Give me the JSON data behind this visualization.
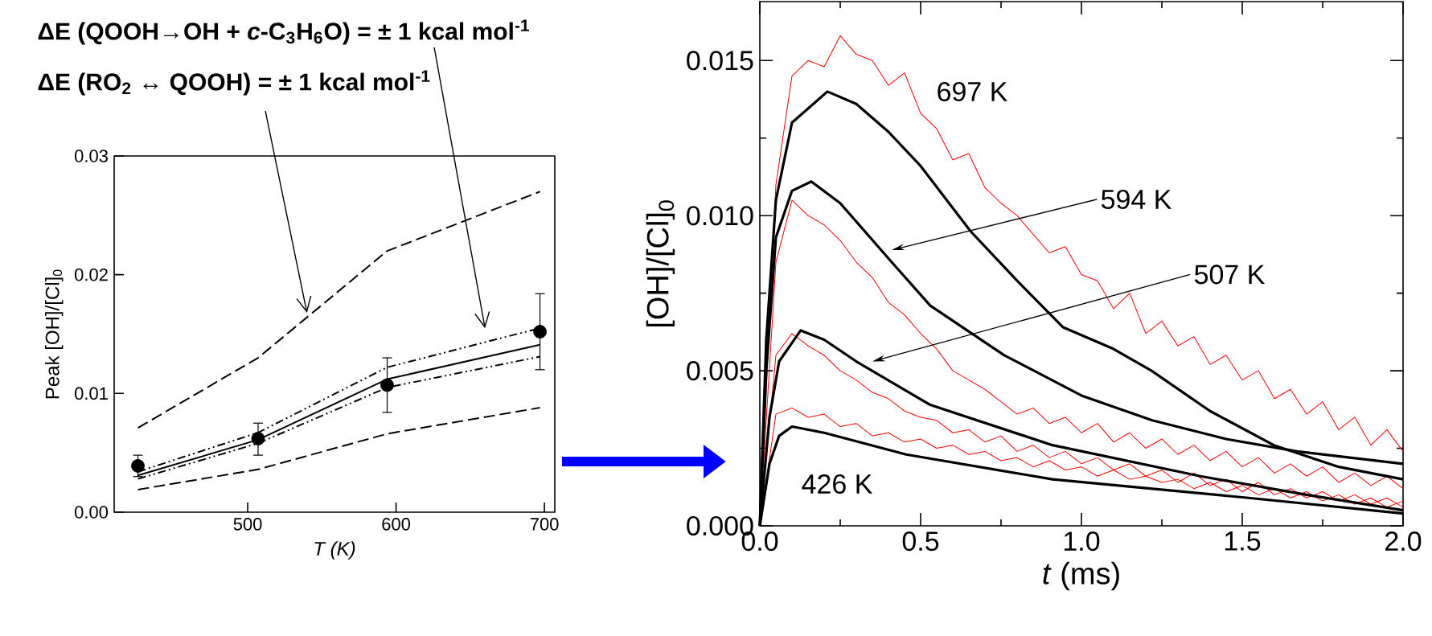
{
  "chart_data": [
    {
      "type": "line",
      "xlabel": "T (K)",
      "ylabel": "Peak [OH]/[Cl]$_{0}$",
      "xlim": [
        410,
        707
      ],
      "xticks": [
        500,
        600,
        700
      ],
      "ylim": [
        0,
        0.03
      ],
      "yticks": [
        {
          "value": 0,
          "label": "0.00"
        },
        {
          "value": 0.01,
          "label": "0.01"
        },
        {
          "value": 0.02,
          "label": "0.02"
        },
        {
          "value": 0.03,
          "label": "0.03"
        }
      ],
      "annotations": [
        "ΔE (QOOH→OH + *c*-C$_{3}$H$_{6}$O) = ± 1 kcal mol$^{-1}$",
        "ΔE (RO$_{2}$ ↔ QOOH) = ± 1 kcal mol$^{-1}$"
      ],
      "series": [
        {
          "type": "scatter",
          "marker": "circle",
          "color": "#000000",
          "x": [
            426,
            507,
            594,
            697
          ],
          "values": [
            0.0039,
            0.0062,
            0.0107,
            0.0152
          ],
          "errors": [
            [
              0.003,
              0.0048
            ],
            [
              0.0048,
              0.0075
            ],
            [
              0.0084,
              0.013
            ],
            [
              0.012,
              0.0184
            ]
          ]
        },
        {
          "type": "line",
          "line_style": "solid",
          "color": "#000000",
          "x": [
            426,
            507,
            594,
            697
          ],
          "values": [
            0.0031,
            0.0061,
            0.0112,
            0.0141
          ]
        },
        {
          "type": "line",
          "line_style": "dashdotdotted",
          "color": "#000000",
          "x": [
            426,
            507,
            594,
            697
          ],
          "values": [
            0.0034,
            0.0067,
            0.0122,
            0.0155
          ]
        },
        {
          "type": "line",
          "line_style": "dashdotdotted",
          "color": "#000000",
          "x": [
            426,
            507,
            594,
            697
          ],
          "values": [
            0.0028,
            0.0058,
            0.0105,
            0.0131
          ]
        },
        {
          "type": "line",
          "line_style": "dashed",
          "color": "#000000",
          "x": [
            426,
            507,
            594,
            697
          ],
          "values": [
            0.0071,
            0.013,
            0.022,
            0.027
          ]
        },
        {
          "type": "line",
          "line_style": "dashed",
          "color": "#000000",
          "x": [
            426,
            507,
            594,
            697
          ],
          "values": [
            0.0019,
            0.0036,
            0.0066,
            0.0088
          ]
        }
      ]
    },
    {
      "type": "line",
      "xlabel": "*t* (ms)",
      "ylabel": "[OH]/[Cl]$_{0}$",
      "xlim": [
        0,
        2
      ],
      "xticks": [
        {
          "value": 0,
          "label": "0.0"
        },
        {
          "value": 0.5,
          "label": "0.5"
        },
        {
          "value": 1,
          "label": "1.0"
        },
        {
          "value": 1.5,
          "label": "1.5"
        },
        {
          "value": 2,
          "label": "2.0"
        }
      ],
      "ylim": [
        0,
        0.0169
      ],
      "yticks": [
        {
          "value": 0,
          "label": "0.000"
        },
        {
          "value": 0.005,
          "label": "0.005"
        },
        {
          "value": 0.01,
          "label": "0.010"
        },
        {
          "value": 0.015,
          "label": "0.015"
        }
      ],
      "annotations": [
        "697 K",
        "594 K",
        "507 K",
        "426 K"
      ],
      "series": [
        {
          "type": "line",
          "color": "#ff0000",
          "x": [
            0,
            0.05,
            0.1,
            0.15,
            0.2,
            0.25,
            0.3,
            0.35,
            0.4,
            0.45,
            0.5,
            0.55,
            0.6,
            0.65,
            0.7,
            0.75,
            0.8,
            0.85,
            0.9,
            0.95,
            1.0,
            1.05,
            1.1,
            1.15,
            1.2,
            1.25,
            1.3,
            1.35,
            1.4,
            1.45,
            1.5,
            1.55,
            1.6,
            1.65,
            1.7,
            1.75,
            1.8,
            1.85,
            1.9,
            1.95,
            2.0
          ],
          "values": [
            0,
            0.011,
            0.0145,
            0.015,
            0.0148,
            0.0158,
            0.0152,
            0.015,
            0.0142,
            0.0146,
            0.0133,
            0.0128,
            0.0118,
            0.012,
            0.0109,
            0.0104,
            0.01,
            0.0094,
            0.0088,
            0.009,
            0.0081,
            0.0079,
            0.007,
            0.0075,
            0.0062,
            0.0066,
            0.0058,
            0.0061,
            0.0052,
            0.0055,
            0.0047,
            0.005,
            0.0041,
            0.0044,
            0.0036,
            0.004,
            0.0031,
            0.0035,
            0.0026,
            0.0031,
            0.0024
          ]
        },
        {
          "type": "line",
          "color": "#ff0000",
          "x": [
            0,
            0.05,
            0.1,
            0.15,
            0.2,
            0.25,
            0.3,
            0.35,
            0.4,
            0.45,
            0.5,
            0.55,
            0.6,
            0.65,
            0.7,
            0.75,
            0.8,
            0.85,
            0.9,
            0.95,
            1.0,
            1.05,
            1.1,
            1.15,
            1.2,
            1.25,
            1.3,
            1.35,
            1.4,
            1.45,
            1.5,
            1.55,
            1.6,
            1.65,
            1.7,
            1.75,
            1.8,
            1.85,
            1.9,
            1.95,
            2.0
          ],
          "values": [
            0,
            0.0085,
            0.0105,
            0.01,
            0.0097,
            0.0092,
            0.0085,
            0.008,
            0.0072,
            0.0068,
            0.0062,
            0.0057,
            0.005,
            0.0047,
            0.0044,
            0.004,
            0.0036,
            0.0038,
            0.0033,
            0.0035,
            0.003,
            0.0033,
            0.0027,
            0.003,
            0.0025,
            0.0028,
            0.0023,
            0.0026,
            0.0021,
            0.0024,
            0.0019,
            0.0022,
            0.0017,
            0.002,
            0.0016,
            0.0019,
            0.0014,
            0.0017,
            0.0013,
            0.0016,
            0.0012
          ]
        },
        {
          "type": "line",
          "color": "#ff0000",
          "x": [
            0,
            0.05,
            0.1,
            0.15,
            0.2,
            0.25,
            0.3,
            0.35,
            0.4,
            0.45,
            0.5,
            0.55,
            0.6,
            0.65,
            0.7,
            0.75,
            0.8,
            0.85,
            0.9,
            0.95,
            1.0,
            1.05,
            1.1,
            1.15,
            1.2,
            1.25,
            1.3,
            1.35,
            1.4,
            1.45,
            1.5,
            1.55,
            1.6,
            1.65,
            1.7,
            1.75,
            1.8,
            1.85,
            1.9,
            1.95,
            2.0
          ],
          "values": [
            0,
            0.0055,
            0.0062,
            0.0058,
            0.0055,
            0.005,
            0.0047,
            0.0043,
            0.0041,
            0.0037,
            0.0035,
            0.0034,
            0.003,
            0.0031,
            0.0027,
            0.0029,
            0.0024,
            0.0026,
            0.0022,
            0.0024,
            0.002,
            0.0022,
            0.0018,
            0.002,
            0.0016,
            0.0018,
            0.0014,
            0.0017,
            0.0013,
            0.0015,
            0.0011,
            0.0014,
            0.001,
            0.0012,
            0.0009,
            0.0011,
            0.0008,
            0.001,
            0.0007,
            0.0009,
            0.0006
          ]
        },
        {
          "type": "line",
          "color": "#ff0000",
          "x": [
            0,
            0.05,
            0.1,
            0.15,
            0.2,
            0.25,
            0.3,
            0.35,
            0.4,
            0.45,
            0.5,
            0.55,
            0.6,
            0.65,
            0.7,
            0.75,
            0.8,
            0.85,
            0.9,
            0.95,
            1.0,
            1.05,
            1.1,
            1.15,
            1.2,
            1.25,
            1.3,
            1.35,
            1.4,
            1.45,
            1.5,
            1.55,
            1.6,
            1.65,
            1.7,
            1.75,
            1.8,
            1.85,
            1.9,
            1.95,
            2.0
          ],
          "values": [
            0,
            0.0036,
            0.0038,
            0.0035,
            0.0036,
            0.0032,
            0.0033,
            0.0029,
            0.003,
            0.0027,
            0.0028,
            0.0025,
            0.0026,
            0.0023,
            0.0024,
            0.0021,
            0.0022,
            0.0019,
            0.0021,
            0.0018,
            0.0019,
            0.0016,
            0.0018,
            0.0015,
            0.0016,
            0.0014,
            0.0015,
            0.0012,
            0.0014,
            0.0011,
            0.0013,
            0.001,
            0.0012,
            0.0009,
            0.0011,
            0.0008,
            0.001,
            0.0007,
            0.0009,
            0.0006,
            0.0008
          ]
        },
        {
          "type": "line",
          "color": "#000000",
          "x": [
            0,
            0.02,
            0.05,
            0.1,
            0.21,
            0.3,
            0.4,
            0.5,
            0.655,
            0.8,
            0.943,
            1.1,
            1.218,
            1.4,
            1.598,
            1.8,
            2.0
          ],
          "values": [
            0,
            0.006,
            0.0105,
            0.013,
            0.014,
            0.0136,
            0.0127,
            0.0116,
            0.0095,
            0.0079,
            0.0064,
            0.0057,
            0.005,
            0.0037,
            0.0026,
            0.0019,
            0.0015
          ]
        },
        {
          "type": "line",
          "color": "#000000",
          "x": [
            0,
            0.02,
            0.05,
            0.1,
            0.16,
            0.25,
            0.41,
            0.53,
            0.76,
            1.0,
            1.22,
            1.45,
            1.67,
            2.0
          ],
          "values": [
            0,
            0.005,
            0.0093,
            0.0108,
            0.0111,
            0.0104,
            0.0085,
            0.0071,
            0.0055,
            0.0042,
            0.0034,
            0.0028,
            0.0024,
            0.002
          ]
        },
        {
          "type": "line",
          "color": "#000000",
          "x": [
            0,
            0.03,
            0.06,
            0.127,
            0.2,
            0.3,
            0.53,
            0.91,
            1.37,
            1.7,
            2.0
          ],
          "values": [
            0,
            0.0035,
            0.0053,
            0.0063,
            0.006,
            0.0053,
            0.0039,
            0.0026,
            0.0016,
            0.001,
            0.0005
          ]
        },
        {
          "type": "line",
          "color": "#000000",
          "x": [
            0,
            0.03,
            0.06,
            0.1,
            0.2,
            0.455,
            0.91,
            1.52,
            2.0
          ],
          "values": [
            0,
            0.002,
            0.0029,
            0.0032,
            0.003,
            0.0023,
            0.0015,
            0.0009,
            0.0004
          ]
        }
      ]
    }
  ]
}
